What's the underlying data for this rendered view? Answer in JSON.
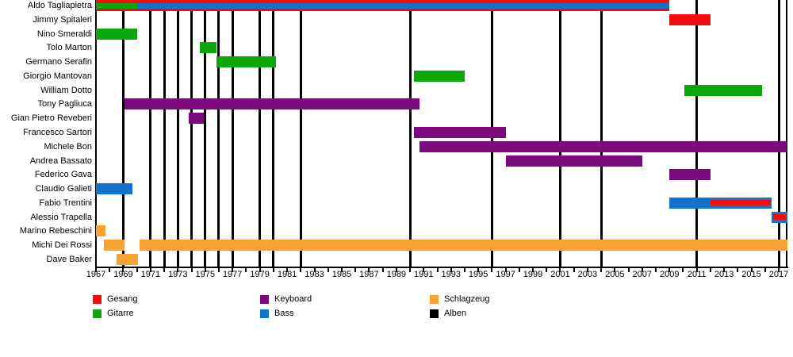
{
  "chart_data": {
    "type": "timeline",
    "title": "",
    "x_axis": {
      "min": 1967,
      "max": 2017.65,
      "tick_step": 1,
      "label_step": 2,
      "label_years": [
        1967,
        1969,
        1971,
        1973,
        1975,
        1977,
        1979,
        1981,
        1983,
        1985,
        1987,
        1989,
        1991,
        1993,
        1995,
        1997,
        1999,
        2001,
        2003,
        2005,
        2007,
        2009,
        2011,
        2013,
        2015,
        2017
      ]
    },
    "legend": [
      {
        "name": "Gesang",
        "color": "#f20d0d"
      },
      {
        "name": "Gitarre",
        "color": "#0ba70b"
      },
      {
        "name": "Keyboard",
        "color": "#7d0a7d"
      },
      {
        "name": "Bass",
        "color": "#1173cd"
      },
      {
        "name": "Schlagzeug",
        "color": "#f9a233"
      },
      {
        "name": "Alben",
        "color": "#000000"
      }
    ],
    "album_years": [
      1969,
      1971,
      1972,
      1973,
      1974,
      1975,
      1976,
      1977,
      1979,
      1980,
      1982,
      1990,
      1996,
      2001,
      2004,
      2011,
      2017
    ],
    "members": [
      {
        "name": "Aldo Tagliapietra",
        "segments": [
          {
            "role": "Gesang",
            "start": 1967,
            "end": 2009,
            "layer": "full"
          },
          {
            "role": "Gitarre",
            "start": 1967,
            "end": 1970,
            "layer": "inner"
          },
          {
            "role": "Bass",
            "start": 1970,
            "end": 2009,
            "layer": "inner"
          }
        ]
      },
      {
        "name": "Jimmy Spitaleri",
        "segments": [
          {
            "role": "Gesang",
            "start": 2009,
            "end": 2012,
            "layer": "full"
          }
        ]
      },
      {
        "name": "Nino Smeraldi",
        "segments": [
          {
            "role": "Gitarre",
            "start": 1967,
            "end": 1970,
            "layer": "full"
          }
        ]
      },
      {
        "name": "Tolo Marton",
        "segments": [
          {
            "role": "Gitarre",
            "start": 1974.6,
            "end": 1975.8,
            "layer": "full"
          }
        ]
      },
      {
        "name": "Germano Serafin",
        "segments": [
          {
            "role": "Gitarre",
            "start": 1975.8,
            "end": 1980.2,
            "layer": "full"
          }
        ]
      },
      {
        "name": "Giorgio Mantovan",
        "segments": [
          {
            "role": "Gitarre",
            "start": 1990.3,
            "end": 1994,
            "layer": "full"
          }
        ]
      },
      {
        "name": "William Dotto",
        "segments": [
          {
            "role": "Gitarre",
            "start": 2010.1,
            "end": 2015.8,
            "layer": "full"
          }
        ]
      },
      {
        "name": "Tony Pagliuca",
        "segments": [
          {
            "role": "Keyboard",
            "start": 1969.1,
            "end": 1990.7,
            "layer": "full"
          }
        ]
      },
      {
        "name": "Gian Pietro Reveberi",
        "segments": [
          {
            "role": "Keyboard",
            "start": 1973.8,
            "end": 1974.9,
            "layer": "full"
          }
        ]
      },
      {
        "name": "Francesco Sartori",
        "segments": [
          {
            "role": "Keyboard",
            "start": 1990.3,
            "end": 1997,
            "layer": "full"
          }
        ]
      },
      {
        "name": "Michele Bon",
        "segments": [
          {
            "role": "Keyboard",
            "start": 1990.7,
            "end": 2017.6,
            "layer": "full"
          }
        ]
      },
      {
        "name": "Andrea Bassato",
        "segments": [
          {
            "role": "Keyboard",
            "start": 1997,
            "end": 2007,
            "layer": "full"
          }
        ]
      },
      {
        "name": "Federico Gava",
        "segments": [
          {
            "role": "Keyboard",
            "start": 2009,
            "end": 2012,
            "layer": "full"
          }
        ]
      },
      {
        "name": "Claudio Galieti",
        "segments": [
          {
            "role": "Bass",
            "start": 1967,
            "end": 1969.7,
            "layer": "full"
          }
        ]
      },
      {
        "name": "Fabio Trentini",
        "segments": [
          {
            "role": "Bass",
            "start": 2009,
            "end": 2016.5,
            "layer": "full"
          },
          {
            "role": "Gesang",
            "start": 2012,
            "end": 2016.4,
            "layer": "inner"
          }
        ]
      },
      {
        "name": "Alessio Trapella",
        "segments": [
          {
            "role": "Bass",
            "start": 2016.5,
            "end": 2017.65,
            "layer": "full"
          },
          {
            "role": "Gesang",
            "start": 2016.6,
            "end": 2017.55,
            "layer": "inner"
          }
        ]
      },
      {
        "name": "Marino Rebeschini",
        "segments": [
          {
            "role": "Schlagzeug",
            "start": 1967,
            "end": 1967.7,
            "layer": "full"
          }
        ]
      },
      {
        "name": "Michi Dei Rossi",
        "segments": [
          {
            "role": "Schlagzeug",
            "start": 1967.6,
            "end": 1969.1,
            "layer": "full"
          },
          {
            "role": "Schlagzeug",
            "start": 1970.2,
            "end": 2017.65,
            "layer": "full"
          }
        ]
      },
      {
        "name": "Dave Baker",
        "segments": [
          {
            "role": "Schlagzeug",
            "start": 1968.5,
            "end": 1970.1,
            "layer": "full"
          }
        ]
      }
    ]
  }
}
